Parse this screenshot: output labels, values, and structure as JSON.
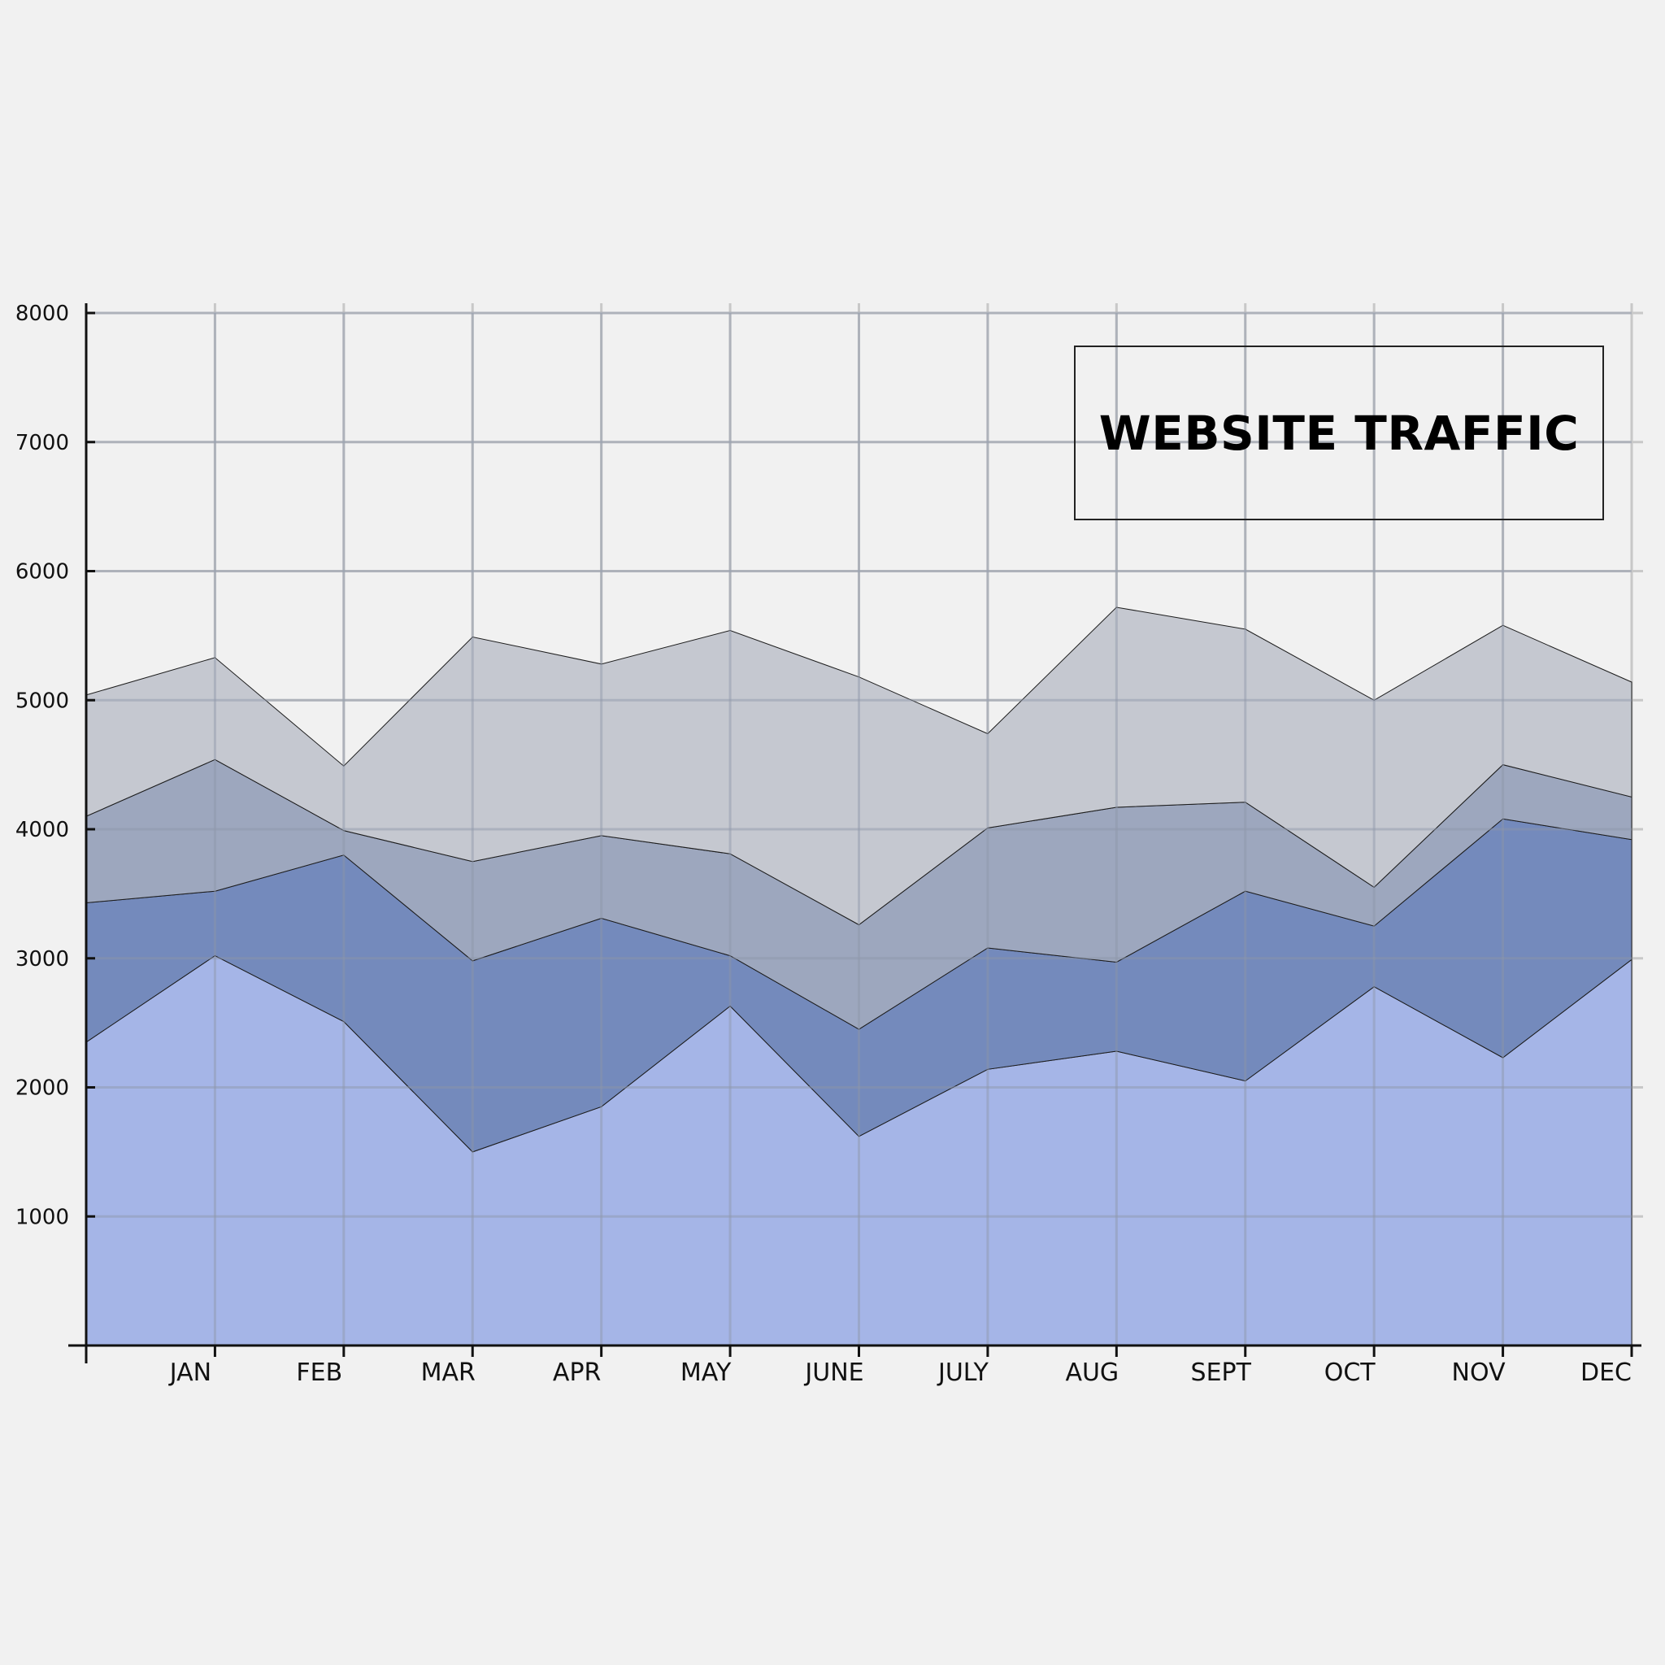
{
  "colors": {
    "background": "#f1f1f1",
    "grid": "#c8c8c8",
    "axis": "#111111",
    "layers": [
      "#a2b3e6",
      "#6f86ba",
      "#9aa4bc",
      "#c3c6ce"
    ]
  },
  "chart_data": {
    "type": "area",
    "stacked": true,
    "title": "WEBSITE TRAFFIC",
    "xlabel": "",
    "ylabel": "",
    "x": [
      "",
      "JAN",
      "FEB",
      "MAR",
      "APR",
      "MAY",
      "JUNE",
      "JULY",
      "AUG",
      "SEPT",
      "OCT",
      "NOV",
      "DEC"
    ],
    "x_tick_labels": [
      "JAN",
      "FEB",
      "MAR",
      "APR",
      "MAY",
      "JUNE",
      "JULY",
      "AUG",
      "SEPT",
      "OCT",
      "NOV",
      "DEC"
    ],
    "y_ticks": [
      1000,
      2000,
      3000,
      4000,
      5000,
      6000,
      7000,
      8000
    ],
    "ylim": [
      0,
      8000
    ],
    "grid": true,
    "legend": "none",
    "series": [
      {
        "values": [
          2350,
          3020,
          2510,
          1500,
          1850,
          2630,
          1620,
          2140,
          2280,
          2050,
          2780,
          2230,
          2990
        ]
      },
      {
        "values": [
          1080,
          500,
          1290,
          1480,
          1460,
          390,
          830,
          940,
          690,
          1470,
          470,
          1850,
          930
        ]
      },
      {
        "values": [
          670,
          1020,
          190,
          770,
          640,
          790,
          810,
          930,
          1200,
          690,
          300,
          420,
          330
        ]
      },
      {
        "values": [
          940,
          790,
          500,
          1740,
          1330,
          1730,
          1920,
          730,
          1550,
          1340,
          1450,
          1080,
          890
        ]
      }
    ]
  }
}
